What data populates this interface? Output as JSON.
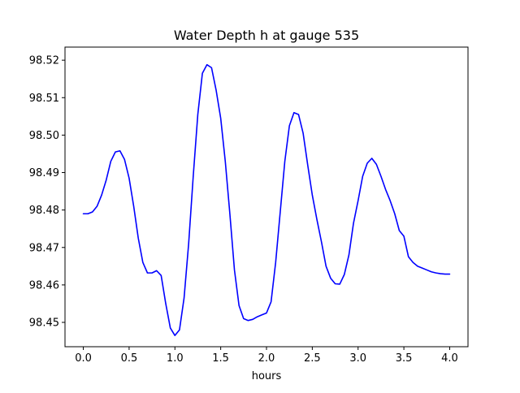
{
  "chart_data": {
    "type": "line",
    "title": "Water Depth h at gauge 535",
    "xlabel": "hours",
    "ylabel": "",
    "xlim": [
      -0.2,
      4.2
    ],
    "ylim": [
      98.4435,
      98.5235
    ],
    "xticks": [
      0.0,
      0.5,
      1.0,
      1.5,
      2.0,
      2.5,
      3.0,
      3.5,
      4.0
    ],
    "xtick_labels": [
      "0.0",
      "0.5",
      "1.0",
      "1.5",
      "2.0",
      "2.5",
      "3.0",
      "3.5",
      "4.0"
    ],
    "yticks": [
      98.45,
      98.46,
      98.47,
      98.48,
      98.49,
      98.5,
      98.51,
      98.52
    ],
    "ytick_labels": [
      "98.45",
      "98.46",
      "98.47",
      "98.48",
      "98.49",
      "98.50",
      "98.51",
      "98.52"
    ],
    "grid": false,
    "line_color": "#0000ff",
    "series": [
      {
        "x": [
          0.0,
          0.05,
          0.1,
          0.15,
          0.2,
          0.25,
          0.3,
          0.35,
          0.4,
          0.45,
          0.5,
          0.55,
          0.6,
          0.65,
          0.7,
          0.75,
          0.8,
          0.85,
          0.9,
          0.95,
          1.0,
          1.05,
          1.1,
          1.15,
          1.2,
          1.25,
          1.3,
          1.35,
          1.4,
          1.45,
          1.5,
          1.55,
          1.6,
          1.65,
          1.7,
          1.75,
          1.8,
          1.85,
          1.9,
          1.95,
          2.0,
          2.05,
          2.1,
          2.15,
          2.2,
          2.25,
          2.3,
          2.35,
          2.4,
          2.45,
          2.5,
          2.55,
          2.6,
          2.65,
          2.7,
          2.75,
          2.8,
          2.85,
          2.9,
          2.95,
          3.0,
          3.05,
          3.1,
          3.15,
          3.2,
          3.25,
          3.3,
          3.35,
          3.4,
          3.45,
          3.5,
          3.55,
          3.6,
          3.65,
          3.7,
          3.75,
          3.8,
          3.85,
          3.9,
          3.95,
          4.0
        ],
        "values": [
          98.479,
          98.479,
          98.4795,
          98.481,
          98.484,
          98.488,
          98.493,
          98.4955,
          98.4958,
          98.4935,
          98.4885,
          98.481,
          98.4725,
          98.466,
          98.4632,
          98.4632,
          98.4638,
          98.4625,
          98.455,
          98.4485,
          98.4465,
          98.448,
          98.4565,
          98.471,
          98.489,
          98.5055,
          98.5165,
          98.5188,
          98.518,
          98.512,
          98.5045,
          98.493,
          98.479,
          98.464,
          98.4545,
          98.451,
          98.4505,
          98.4508,
          98.4515,
          98.452,
          98.4525,
          98.4555,
          98.466,
          98.4795,
          98.493,
          98.5025,
          98.506,
          98.5055,
          98.5005,
          98.492,
          98.484,
          98.4775,
          98.4715,
          98.465,
          98.4618,
          98.4603,
          98.4602,
          98.4628,
          98.468,
          98.4765,
          98.4825,
          98.489,
          98.4925,
          98.4938,
          98.4922,
          98.489,
          98.4855,
          98.4825,
          98.479,
          98.4745,
          98.473,
          98.4675,
          98.466,
          98.465,
          98.4645,
          98.464,
          98.4635,
          98.4632,
          98.463,
          98.4629,
          98.4629
        ]
      }
    ]
  }
}
